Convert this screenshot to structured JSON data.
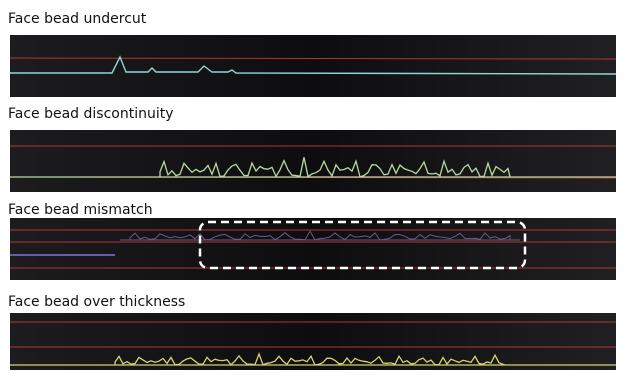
{
  "panels": [
    {
      "label": "Face bead undercut"
    },
    {
      "label": "Face bead discontinuity"
    },
    {
      "label": "Face bead mismatch"
    },
    {
      "label": "Face bead over thickness"
    }
  ]
}
